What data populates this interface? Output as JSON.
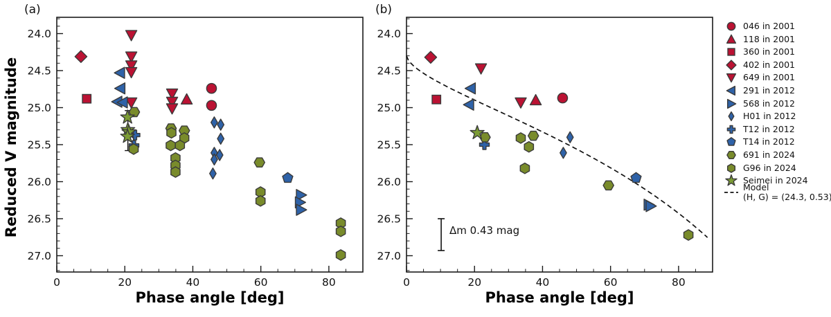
{
  "figure": {
    "panel_a_label": "(a)",
    "panel_b_label": "(b)",
    "x_axis_label": "Phase angle [deg]",
    "y_axis_label": "Reduced V magnitude",
    "annotation_b": "Δm 0.43 mag"
  },
  "colors": {
    "red": "#bb1233",
    "blue": "#2e62a8",
    "olive": "#798b2b",
    "green": "#7c9c35",
    "edge": "#3a3a3a",
    "axis": "#1a1a1a",
    "model_line": "#111111"
  },
  "legend": {
    "items": [
      {
        "label": "046 in 2001",
        "marker": "circle",
        "color": "red"
      },
      {
        "label": "118 in 2001",
        "marker": "triangle-up",
        "color": "red"
      },
      {
        "label": "360 in 2001",
        "marker": "square",
        "color": "red"
      },
      {
        "label": "402 in 2001",
        "marker": "diamond",
        "color": "red"
      },
      {
        "label": "649 in 2001",
        "marker": "triangle-down",
        "color": "red"
      },
      {
        "label": "291 in 2012",
        "marker": "triangle-left",
        "color": "blue"
      },
      {
        "label": "568 in 2012",
        "marker": "triangle-right",
        "color": "blue"
      },
      {
        "label": "H01 in 2012",
        "marker": "thin-diamond",
        "color": "blue"
      },
      {
        "label": "T12 in 2012",
        "marker": "plus",
        "color": "blue"
      },
      {
        "label": "T14 in 2012",
        "marker": "pentagon",
        "color": "blue"
      },
      {
        "label": "691 in 2024",
        "marker": "hexagon-flat",
        "color": "olive"
      },
      {
        "label": "G96 in 2024",
        "marker": "hexagon",
        "color": "olive"
      },
      {
        "label": "Seimei in 2024",
        "marker": "star",
        "color": "green"
      },
      {
        "label": "Model",
        "label2": "(H, G) = (24.3, 0.53)",
        "marker": "dashed-line",
        "color": "model_line"
      }
    ]
  },
  "chart_data": [
    {
      "panel": "a",
      "type": "scatter",
      "xlabel": "Phase angle [deg]",
      "ylabel": "Reduced V magnitude",
      "xlim": [
        0,
        90
      ],
      "ylim": [
        27.22,
        23.78
      ],
      "y_inverted": true,
      "xticks_major": [
        0,
        20,
        40,
        60,
        80
      ],
      "xtick_labels": [
        "0",
        "20",
        "40",
        "60",
        "80"
      ],
      "xtick_minor_step": 5,
      "yticks_major": [
        24.0,
        24.5,
        25.0,
        25.5,
        26.0,
        26.5,
        27.0
      ],
      "ytick_labels": [
        "24.0",
        "24.5",
        "25.0",
        "25.5",
        "26.0",
        "26.5",
        "27.0"
      ],
      "ytick_minor_step": 0.1,
      "grid": false,
      "series": [
        {
          "name": "046 in 2001",
          "marker": "circle",
          "color": "red",
          "points": [
            [
              45.5,
              24.74
            ],
            [
              45.5,
              24.97
            ]
          ]
        },
        {
          "name": "118 in 2001",
          "marker": "triangle-up",
          "color": "red",
          "points": [
            [
              38.2,
              24.89
            ]
          ]
        },
        {
          "name": "360 in 2001",
          "marker": "square",
          "color": "red",
          "points": [
            [
              8.8,
              24.88
            ]
          ]
        },
        {
          "name": "402 in 2001",
          "marker": "diamond",
          "color": "red",
          "points": [
            [
              7.1,
              24.31
            ]
          ]
        },
        {
          "name": "649 in 2001",
          "marker": "triangle-down",
          "color": "red",
          "points": [
            [
              21.9,
              24.02
            ],
            [
              21.9,
              24.31
            ],
            [
              21.9,
              24.43
            ],
            [
              21.9,
              24.52
            ],
            [
              21.9,
              24.93
            ],
            [
              33.9,
              24.81
            ],
            [
              33.9,
              24.92
            ],
            [
              33.9,
              25.01
            ]
          ]
        },
        {
          "name": "291 in 2012",
          "marker": "triangle-left",
          "color": "blue",
          "points": [
            [
              18.6,
              24.53
            ],
            [
              18.7,
              24.74
            ],
            [
              17.8,
              24.92
            ],
            [
              19.4,
              24.93
            ]
          ]
        },
        {
          "name": "568 in 2012",
          "marker": "triangle-right",
          "color": "blue",
          "points": [
            [
              71.8,
              26.18
            ],
            [
              71.5,
              26.28
            ],
            [
              71.8,
              26.38
            ]
          ]
        },
        {
          "name": "H01 in 2012",
          "marker": "thin-diamond",
          "color": "blue",
          "points": [
            [
              46.3,
              25.2
            ],
            [
              48.2,
              25.23
            ],
            [
              48.2,
              25.42
            ],
            [
              46.3,
              25.61
            ],
            [
              47.9,
              25.64
            ],
            [
              46.3,
              25.7
            ],
            [
              45.9,
              25.89
            ]
          ]
        },
        {
          "name": "T12 in 2012",
          "marker": "plus",
          "color": "blue",
          "points": [
            [
              23.0,
              25.37
            ],
            [
              22.7,
              25.51
            ]
          ]
        },
        {
          "name": "T14 in 2012",
          "marker": "pentagon",
          "color": "blue",
          "points": [
            [
              67.9,
              25.95
            ]
          ]
        },
        {
          "name": "691 in 2024",
          "marker": "hexagon-flat",
          "color": "olive",
          "points": [
            [
              22.8,
              25.06
            ],
            [
              33.6,
              25.28
            ],
            [
              37.5,
              25.31
            ],
            [
              59.6,
              25.74
            ]
          ]
        },
        {
          "name": "G96 in 2024",
          "marker": "hexagon",
          "color": "olive",
          "points": [
            [
              22.6,
              25.56
            ],
            [
              33.7,
              25.34
            ],
            [
              37.5,
              25.41
            ],
            [
              33.5,
              25.51
            ],
            [
              36.2,
              25.51
            ],
            [
              34.9,
              25.68
            ],
            [
              34.9,
              25.78
            ],
            [
              34.9,
              25.87
            ],
            [
              59.9,
              26.14
            ],
            [
              59.9,
              26.26
            ],
            [
              83.5,
              26.56
            ],
            [
              83.5,
              26.67
            ],
            [
              83.5,
              26.99
            ]
          ]
        },
        {
          "name": "Seimei in 2024",
          "marker": "star",
          "color": "green",
          "points": [
            [
              20.8,
              25.13
            ],
            [
              20.9,
              25.3
            ],
            [
              21.2,
              25.33
            ],
            [
              20.8,
              25.39
            ]
          ]
        }
      ],
      "errorbars": [
        {
          "x": 20.9,
          "mag_from": 25.04,
          "mag_to": 25.58
        }
      ]
    },
    {
      "panel": "b",
      "type": "scatter",
      "xlabel": "Phase angle [deg]",
      "ylabel": "",
      "xlim": [
        0,
        90
      ],
      "ylim": [
        27.22,
        23.78
      ],
      "y_inverted": true,
      "xticks_major": [
        0,
        20,
        40,
        60,
        80
      ],
      "xtick_labels": [
        "0",
        "20",
        "40",
        "60",
        "80"
      ],
      "xtick_minor_step": 5,
      "yticks_major": [
        24.0,
        24.5,
        25.0,
        25.5,
        26.0,
        26.5,
        27.0
      ],
      "ytick_labels": [
        "24.0",
        "24.5",
        "25.0",
        "25.5",
        "26.0",
        "26.5",
        "27.0"
      ],
      "ytick_minor_step": 0.1,
      "grid": false,
      "series": [
        {
          "name": "046 in 2001",
          "marker": "circle",
          "color": "red",
          "points": [
            [
              45.9,
              24.87
            ]
          ]
        },
        {
          "name": "118 in 2001",
          "marker": "triangle-up",
          "color": "red",
          "points": [
            [
              38.0,
              24.9
            ]
          ]
        },
        {
          "name": "360 in 2001",
          "marker": "square",
          "color": "red",
          "points": [
            [
              8.8,
              24.89
            ]
          ]
        },
        {
          "name": "402 in 2001",
          "marker": "diamond",
          "color": "red",
          "points": [
            [
              7.1,
              24.32
            ]
          ]
        },
        {
          "name": "649 in 2001",
          "marker": "triangle-down",
          "color": "red",
          "points": [
            [
              21.9,
              24.47
            ],
            [
              33.6,
              24.93
            ]
          ]
        },
        {
          "name": "291 in 2012",
          "marker": "triangle-left",
          "color": "blue",
          "points": [
            [
              18.9,
              24.74
            ],
            [
              18.4,
              24.96
            ]
          ]
        },
        {
          "name": "568 in 2012",
          "marker": "triangle-right",
          "color": "blue",
          "points": [
            [
              71.2,
              26.31
            ],
            [
              71.8,
              26.33
            ]
          ]
        },
        {
          "name": "H01 in 2012",
          "marker": "thin-diamond",
          "color": "blue",
          "points": [
            [
              48.1,
              25.4
            ],
            [
              46.1,
              25.61
            ]
          ]
        },
        {
          "name": "T12 in 2012",
          "marker": "plus",
          "color": "blue",
          "points": [
            [
              22.9,
              25.5
            ]
          ]
        },
        {
          "name": "T14 in 2012",
          "marker": "pentagon",
          "color": "blue",
          "points": [
            [
              67.5,
              25.95
            ]
          ]
        },
        {
          "name": "691 in 2024",
          "marker": "hexagon-flat",
          "color": "olive",
          "points": [
            [
              23.1,
              25.4
            ],
            [
              37.3,
              25.38
            ],
            [
              59.4,
              26.05
            ]
          ]
        },
        {
          "name": "G96 in 2024",
          "marker": "hexagon",
          "color": "olive",
          "points": [
            [
              33.6,
              25.41
            ],
            [
              36.0,
              25.53
            ],
            [
              34.8,
              25.82
            ],
            [
              82.9,
              26.72
            ]
          ]
        },
        {
          "name": "Seimei in 2024",
          "marker": "star",
          "color": "green",
          "points": [
            [
              20.8,
              25.34
            ]
          ]
        }
      ],
      "model": {
        "legend_label": "Model",
        "legend_label2": "(H, G) = (24.3, 0.53)",
        "H": 24.3,
        "G": 0.53,
        "style": "dashed",
        "alpha_range": [
          0,
          88.5
        ]
      },
      "annotation": {
        "text": "Δm 0.43 mag",
        "bar_x": 10.2,
        "bar_mag_from": 26.5,
        "bar_mag_to": 26.93
      }
    }
  ]
}
